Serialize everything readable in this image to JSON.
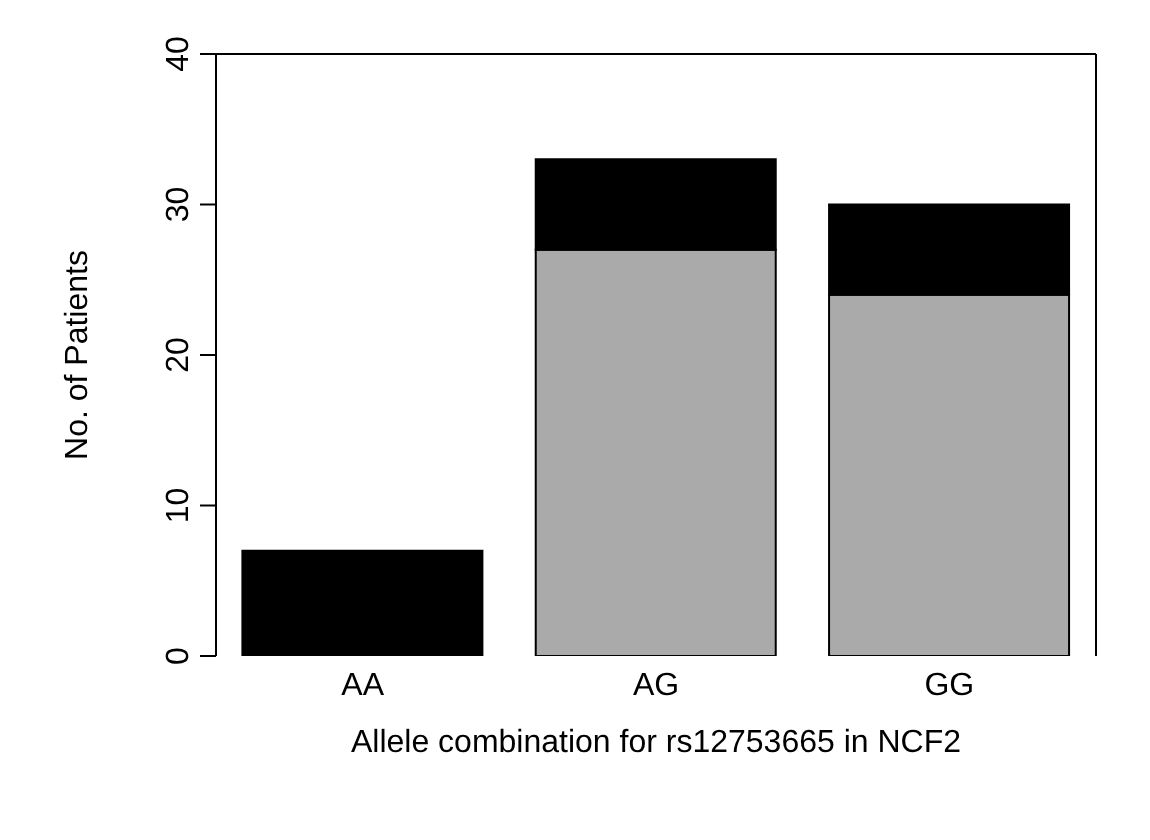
{
  "chart_data": {
    "type": "bar",
    "xlabel": "Allele combination for rs12753665 in NCF2",
    "ylabel": "No. of Patients",
    "categories": [
      "AA",
      "AG",
      "GG"
    ],
    "stacked": true,
    "series": [
      {
        "color": "#aaaaaa",
        "values": [
          0,
          27,
          24
        ]
      },
      {
        "color": "#000000",
        "values": [
          7,
          6,
          6
        ]
      }
    ],
    "ylim": [
      0,
      40
    ],
    "yticks": [
      0,
      10,
      20,
      30,
      40
    ],
    "grid": false,
    "legend": false
  }
}
